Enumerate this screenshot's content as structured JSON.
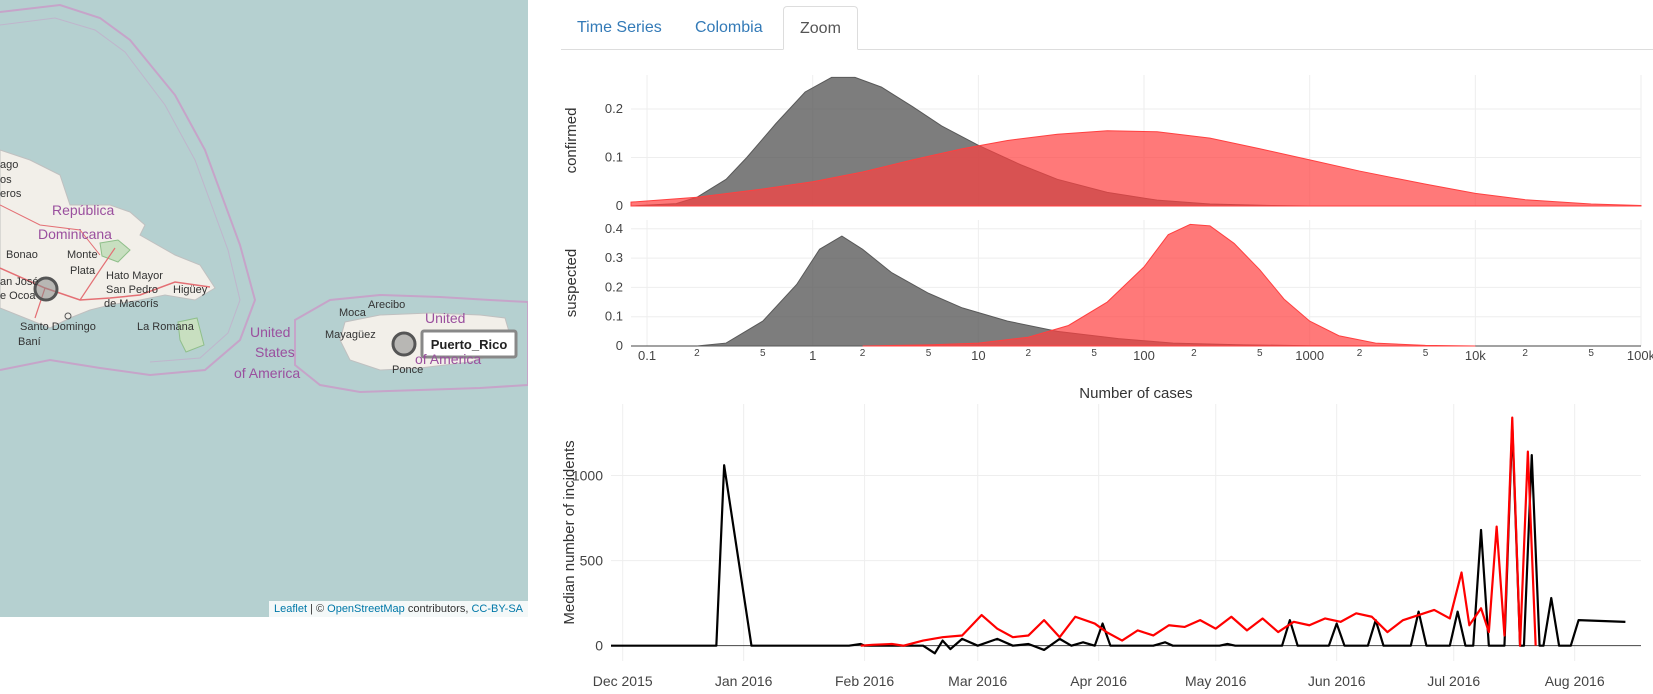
{
  "tabs": [
    {
      "label": "Time Series"
    },
    {
      "label": "Colombia"
    },
    {
      "label": "Zoom"
    }
  ],
  "active_tab": "Zoom",
  "map": {
    "attribution": {
      "leaflet": "Leaflet",
      "sep": " | © ",
      "osm": "OpenStreetMap",
      "contributors": " contributors, ",
      "license": "CC-BY-SA"
    },
    "popup_label": "Puerto_Rico",
    "labels": [
      {
        "text": "ago",
        "kind": "city"
      },
      {
        "text": "os",
        "kind": "city"
      },
      {
        "text": "eros",
        "kind": "city"
      },
      {
        "text": "República",
        "kind": "country"
      },
      {
        "text": "Dominicana",
        "kind": "country"
      },
      {
        "text": "Bonao",
        "kind": "city"
      },
      {
        "text": "Monte",
        "kind": "city"
      },
      {
        "text": "Plata",
        "kind": "city"
      },
      {
        "text": "Hato Mayor",
        "kind": "city"
      },
      {
        "text": "an José",
        "kind": "city"
      },
      {
        "text": "San Pedro",
        "kind": "city"
      },
      {
        "text": "Higüey",
        "kind": "city"
      },
      {
        "text": "e Ocoa",
        "kind": "city"
      },
      {
        "text": "de Macorís",
        "kind": "city"
      },
      {
        "text": "Santo Domingo",
        "kind": "city"
      },
      {
        "text": "La Romana",
        "kind": "city"
      },
      {
        "text": "Baní",
        "kind": "city"
      },
      {
        "text": "United",
        "kind": "country"
      },
      {
        "text": "States",
        "kind": "country"
      },
      {
        "text": "of America",
        "kind": "country"
      },
      {
        "text": "Moca",
        "kind": "city"
      },
      {
        "text": "Arecibo",
        "kind": "city"
      },
      {
        "text": "Mayagüez",
        "kind": "city"
      },
      {
        "text": "United",
        "kind": "country"
      },
      {
        "text": "of America",
        "kind": "country"
      },
      {
        "text": "Ponce",
        "kind": "city"
      }
    ]
  },
  "colors": {
    "suspected": "#000000",
    "confirmed": "#ff0000",
    "density_black": "#595959",
    "density_red": "#ff4040"
  },
  "chart_data": [
    {
      "type": "area",
      "subplot": "confirmed",
      "ylabel": "confirmed",
      "xscale": "log",
      "xlim": [
        0.08,
        100000
      ],
      "ylim": [
        0,
        0.27
      ],
      "yticks": [
        0,
        0.1,
        0.2
      ],
      "series": [
        {
          "color": "#595959",
          "points": [
            [
              0.08,
              0
            ],
            [
              0.15,
              0.005
            ],
            [
              0.2,
              0.018
            ],
            [
              0.3,
              0.055
            ],
            [
              0.4,
              0.1
            ],
            [
              0.6,
              0.17
            ],
            [
              0.9,
              0.235
            ],
            [
              1.3,
              0.265
            ],
            [
              1.8,
              0.265
            ],
            [
              2.6,
              0.245
            ],
            [
              4,
              0.205
            ],
            [
              6,
              0.165
            ],
            [
              10,
              0.125
            ],
            [
              18,
              0.085
            ],
            [
              30,
              0.055
            ],
            [
              60,
              0.028
            ],
            [
              120,
              0.012
            ],
            [
              250,
              0.004
            ],
            [
              600,
              0.001
            ],
            [
              1000,
              0
            ]
          ]
        },
        {
          "color": "#ff4040",
          "points": [
            [
              0.08,
              0.008
            ],
            [
              0.2,
              0.018
            ],
            [
              0.5,
              0.035
            ],
            [
              1,
              0.05
            ],
            [
              2,
              0.07
            ],
            [
              4,
              0.095
            ],
            [
              8,
              0.118
            ],
            [
              15,
              0.135
            ],
            [
              30,
              0.148
            ],
            [
              60,
              0.155
            ],
            [
              120,
              0.153
            ],
            [
              250,
              0.14
            ],
            [
              500,
              0.118
            ],
            [
              1000,
              0.095
            ],
            [
              2000,
              0.072
            ],
            [
              5000,
              0.045
            ],
            [
              10000,
              0.026
            ],
            [
              20000,
              0.013
            ],
            [
              50000,
              0.004
            ],
            [
              100000,
              0.001
            ]
          ]
        }
      ]
    },
    {
      "type": "area",
      "subplot": "suspected",
      "ylabel": "suspected",
      "xscale": "log",
      "xlabel": "Number of cases",
      "xlim": [
        0.08,
        100000
      ],
      "ylim": [
        0,
        0.43
      ],
      "yticks": [
        0,
        0.1,
        0.2,
        0.3,
        0.4
      ],
      "xticks": [
        {
          "v": 0.1,
          "l": "0.1",
          "major": true
        },
        {
          "v": 0.2,
          "l": "2"
        },
        {
          "v": 0.5,
          "l": "5"
        },
        {
          "v": 1,
          "l": "1",
          "major": true
        },
        {
          "v": 2,
          "l": "2"
        },
        {
          "v": 5,
          "l": "5"
        },
        {
          "v": 10,
          "l": "10",
          "major": true
        },
        {
          "v": 20,
          "l": "2"
        },
        {
          "v": 50,
          "l": "5"
        },
        {
          "v": 100,
          "l": "100",
          "major": true
        },
        {
          "v": 200,
          "l": "2"
        },
        {
          "v": 500,
          "l": "5"
        },
        {
          "v": 1000,
          "l": "1000",
          "major": true
        },
        {
          "v": 2000,
          "l": "2"
        },
        {
          "v": 5000,
          "l": "5"
        },
        {
          "v": 10000,
          "l": "10k",
          "major": true
        },
        {
          "v": 20000,
          "l": "2"
        },
        {
          "v": 50000,
          "l": "5"
        },
        {
          "v": 100000,
          "l": "100k",
          "major": true
        }
      ],
      "series": [
        {
          "color": "#595959",
          "points": [
            [
              0.2,
              0
            ],
            [
              0.3,
              0.01
            ],
            [
              0.5,
              0.085
            ],
            [
              0.8,
              0.21
            ],
            [
              1.1,
              0.33
            ],
            [
              1.5,
              0.375
            ],
            [
              2,
              0.33
            ],
            [
              3,
              0.25
            ],
            [
              5,
              0.18
            ],
            [
              8,
              0.13
            ],
            [
              15,
              0.085
            ],
            [
              30,
              0.05
            ],
            [
              70,
              0.025
            ],
            [
              150,
              0.01
            ],
            [
              400,
              0.004
            ],
            [
              1000,
              0.001
            ],
            [
              5000,
              0
            ]
          ]
        },
        {
          "color": "#ff4040",
          "points": [
            [
              2,
              0
            ],
            [
              5,
              0.004
            ],
            [
              10,
              0.01
            ],
            [
              20,
              0.03
            ],
            [
              35,
              0.07
            ],
            [
              60,
              0.15
            ],
            [
              100,
              0.27
            ],
            [
              140,
              0.38
            ],
            [
              190,
              0.415
            ],
            [
              250,
              0.41
            ],
            [
              350,
              0.35
            ],
            [
              500,
              0.26
            ],
            [
              700,
              0.16
            ],
            [
              1000,
              0.085
            ],
            [
              1500,
              0.035
            ],
            [
              2500,
              0.01
            ],
            [
              5000,
              0.002
            ],
            [
              10000,
              0
            ]
          ]
        }
      ]
    },
    {
      "type": "line",
      "subplot": "time-series",
      "ylabel": "Median number of incidents",
      "xlim": [
        "2015-11-28",
        "2016-08-18"
      ],
      "ylim": [
        -90,
        1420
      ],
      "yticks": [
        0,
        500,
        1000
      ],
      "xticks": [
        "2015-12-01",
        "2016-01-01",
        "2016-02-01",
        "2016-03-01",
        "2016-04-01",
        "2016-05-01",
        "2016-06-01",
        "2016-07-01",
        "2016-08-01"
      ],
      "xtick_labels": [
        "Dec 2015",
        "Jan 2016",
        "Feb 2016",
        "Mar 2016",
        "Apr 2016",
        "May 2016",
        "Jun 2016",
        "Jul 2016",
        "Aug 2016"
      ],
      "series": [
        {
          "color": "#000000",
          "points": [
            [
              "2015-11-28",
              0
            ],
            [
              "2015-12-25",
              0
            ],
            [
              "2015-12-27",
              1060
            ],
            [
              "2016-01-03",
              0
            ],
            [
              "2016-01-28",
              0
            ],
            [
              "2016-01-31",
              10
            ],
            [
              "2016-02-01",
              0
            ],
            [
              "2016-02-16",
              0
            ],
            [
              "2016-02-19",
              -45
            ],
            [
              "2016-02-21",
              30
            ],
            [
              "2016-02-23",
              -20
            ],
            [
              "2016-02-26",
              40
            ],
            [
              "2016-03-01",
              0
            ],
            [
              "2016-03-06",
              40
            ],
            [
              "2016-03-10",
              0
            ],
            [
              "2016-03-14",
              10
            ],
            [
              "2016-03-18",
              -25
            ],
            [
              "2016-03-22",
              40
            ],
            [
              "2016-03-25",
              0
            ],
            [
              "2016-03-28",
              20
            ],
            [
              "2016-03-31",
              0
            ],
            [
              "2016-04-02",
              130
            ],
            [
              "2016-04-04",
              0
            ],
            [
              "2016-04-15",
              0
            ],
            [
              "2016-04-18",
              20
            ],
            [
              "2016-04-20",
              0
            ],
            [
              "2016-05-02",
              0
            ],
            [
              "2016-05-04",
              10
            ],
            [
              "2016-05-06",
              0
            ],
            [
              "2016-05-18",
              0
            ],
            [
              "2016-05-20",
              150
            ],
            [
              "2016-05-22",
              0
            ],
            [
              "2016-05-30",
              0
            ],
            [
              "2016-06-01",
              130
            ],
            [
              "2016-06-03",
              0
            ],
            [
              "2016-06-09",
              0
            ],
            [
              "2016-06-11",
              150
            ],
            [
              "2016-06-13",
              0
            ],
            [
              "2016-06-20",
              0
            ],
            [
              "2016-06-22",
              200
            ],
            [
              "2016-06-24",
              0
            ],
            [
              "2016-06-30",
              0
            ],
            [
              "2016-07-02",
              200
            ],
            [
              "2016-07-04",
              0
            ],
            [
              "2016-07-06",
              0
            ],
            [
              "2016-07-08",
              680
            ],
            [
              "2016-07-10",
              0
            ],
            [
              "2016-07-14",
              0
            ],
            [
              "2016-07-16",
              1300
            ],
            [
              "2016-07-18",
              0
            ],
            [
              "2016-07-19",
              0
            ],
            [
              "2016-07-21",
              1120
            ],
            [
              "2016-07-23",
              0
            ],
            [
              "2016-07-24",
              0
            ],
            [
              "2016-07-26",
              280
            ],
            [
              "2016-07-28",
              0
            ],
            [
              "2016-07-31",
              0
            ],
            [
              "2016-08-02",
              150
            ],
            [
              "2016-08-14",
              140
            ]
          ]
        },
        {
          "color": "#ff0000",
          "points": [
            [
              "2016-01-31",
              0
            ],
            [
              "2016-02-03",
              5
            ],
            [
              "2016-02-08",
              10
            ],
            [
              "2016-02-11",
              0
            ],
            [
              "2016-02-16",
              30
            ],
            [
              "2016-02-21",
              50
            ],
            [
              "2016-02-26",
              60
            ],
            [
              "2016-03-02",
              180
            ],
            [
              "2016-03-06",
              100
            ],
            [
              "2016-03-10",
              50
            ],
            [
              "2016-03-14",
              60
            ],
            [
              "2016-03-18",
              150
            ],
            [
              "2016-03-22",
              50
            ],
            [
              "2016-03-26",
              170
            ],
            [
              "2016-03-31",
              130
            ],
            [
              "2016-04-03",
              80
            ],
            [
              "2016-04-07",
              30
            ],
            [
              "2016-04-11",
              90
            ],
            [
              "2016-04-15",
              60
            ],
            [
              "2016-04-19",
              120
            ],
            [
              "2016-04-23",
              110
            ],
            [
              "2016-04-27",
              150
            ],
            [
              "2016-05-01",
              100
            ],
            [
              "2016-05-05",
              170
            ],
            [
              "2016-05-09",
              90
            ],
            [
              "2016-05-13",
              160
            ],
            [
              "2016-05-17",
              80
            ],
            [
              "2016-05-21",
              140
            ],
            [
              "2016-05-25",
              120
            ],
            [
              "2016-05-29",
              160
            ],
            [
              "2016-06-02",
              140
            ],
            [
              "2016-06-06",
              190
            ],
            [
              "2016-06-10",
              170
            ],
            [
              "2016-06-14",
              80
            ],
            [
              "2016-06-18",
              150
            ],
            [
              "2016-06-22",
              180
            ],
            [
              "2016-06-26",
              210
            ],
            [
              "2016-06-30",
              160
            ],
            [
              "2016-07-03",
              430
            ],
            [
              "2016-07-05",
              120
            ],
            [
              "2016-07-08",
              220
            ],
            [
              "2016-07-10",
              80
            ],
            [
              "2016-07-12",
              700
            ],
            [
              "2016-07-14",
              60
            ],
            [
              "2016-07-16",
              1340
            ],
            [
              "2016-07-18",
              0
            ],
            [
              "2016-07-20",
              1140
            ],
            [
              "2016-07-22",
              0
            ]
          ]
        }
      ]
    }
  ]
}
